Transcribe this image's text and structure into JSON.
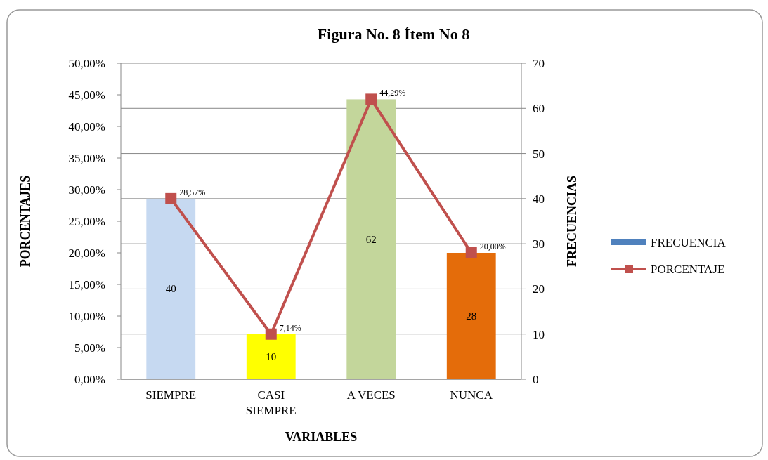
{
  "chart_data": {
    "type": "bar",
    "title": "Figura No. 8 Ítem No 8",
    "xlabel": "VARIABLES",
    "ylabel": "PORCENTAJES",
    "y2label": "FRECUENCIAS",
    "categories": [
      "SIEMPRE",
      "CASI SIEMPRE",
      "A VECES",
      "NUNCA"
    ],
    "series": [
      {
        "name": "FRECUENCIA",
        "axis": "y2",
        "color": "#4f81bd",
        "colors": [
          "#c6d9f1",
          "#ffff00",
          "#c3d69b",
          "#e46c0a"
        ],
        "values": [
          40,
          10,
          62,
          28
        ],
        "value_labels": [
          "40",
          "10",
          "62",
          "28"
        ]
      },
      {
        "name": "PORCENTAJE",
        "type": "line",
        "axis": "y",
        "color": "#c0504d",
        "values": [
          28.57,
          7.14,
          44.29,
          20.0
        ],
        "value_labels": [
          "28,57%",
          "7,14%",
          "44,29%",
          "20,00%"
        ]
      }
    ],
    "ylim": [
      0,
      50
    ],
    "yticks": [
      {
        "value": 0,
        "label": "0,00%"
      },
      {
        "value": 5,
        "label": "5,00%"
      },
      {
        "value": 10,
        "label": "10,00%"
      },
      {
        "value": 15,
        "label": "15,00%"
      },
      {
        "value": 20,
        "label": "20,00%"
      },
      {
        "value": 25,
        "label": "25,00%"
      },
      {
        "value": 30,
        "label": "30,00%"
      },
      {
        "value": 35,
        "label": "35,00%"
      },
      {
        "value": 40,
        "label": "40,00%"
      },
      {
        "value": 45,
        "label": "45,00%"
      },
      {
        "value": 50,
        "label": "50,00%"
      }
    ],
    "y2lim": [
      0,
      70
    ],
    "y2ticks": [
      0,
      10,
      20,
      30,
      40,
      50,
      60,
      70
    ],
    "grid": "y2",
    "legend": "right",
    "marker": "square",
    "line_style": "solid"
  }
}
